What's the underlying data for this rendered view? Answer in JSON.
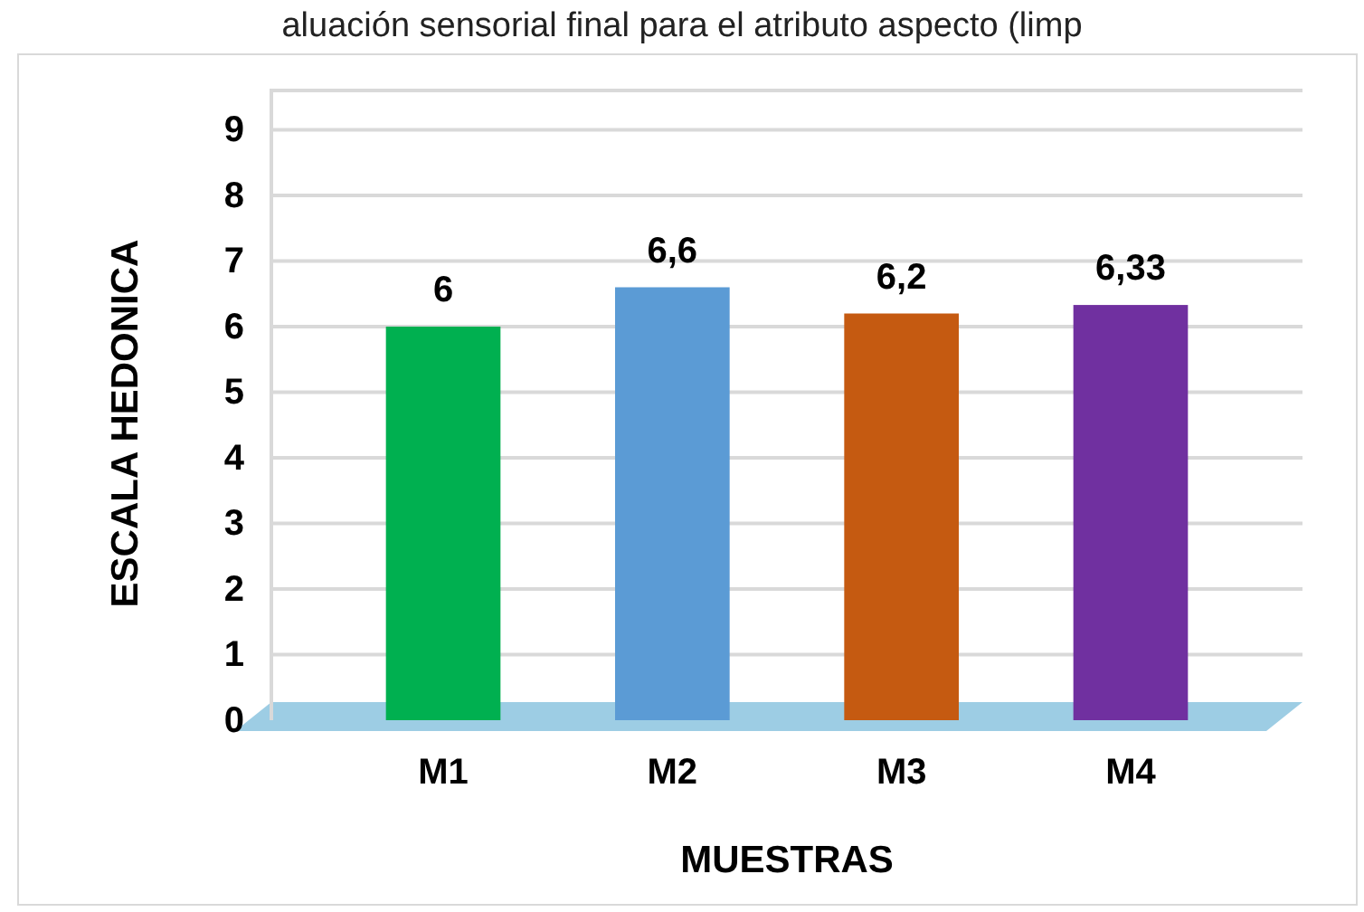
{
  "chart_data": {
    "type": "bar",
    "title": "aluación sensorial final para el atributo aspecto (limp",
    "xlabel": "MUESTRAS",
    "ylabel": "ESCALA HEDONICA",
    "categories": [
      "M1",
      "M2",
      "M3",
      "M4"
    ],
    "values": [
      6,
      6.6,
      6.2,
      6.33
    ],
    "colors": [
      "#00b050",
      "#5b9bd5",
      "#c55a11",
      "#7030a0"
    ],
    "value_labels": [
      "6",
      "6,6",
      "6,2",
      "6,33"
    ],
    "ylim": [
      0,
      9.6
    ],
    "yticks": [
      0,
      1,
      2,
      3,
      4,
      5,
      6,
      7,
      8,
      9
    ],
    "grid": "y"
  }
}
